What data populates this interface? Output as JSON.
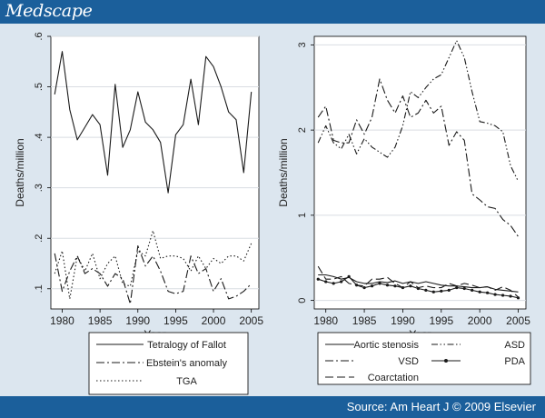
{
  "header": {
    "brand": "Medscape"
  },
  "footer": {
    "source": "Source: Am Heart J © 2009 Elsevier"
  },
  "colors": {
    "banner": "#1b5f9b",
    "panel": "#dce6ef",
    "plot_bg": "#ffffff",
    "line": "#1a1a1a"
  },
  "chart_data": [
    {
      "type": "line",
      "title": "",
      "xlabel": "Year",
      "ylabel": "Deaths/million",
      "xlim": [
        1978.5,
        2006
      ],
      "ylim": [
        0.06,
        0.6
      ],
      "xticks": [
        1980,
        1985,
        1990,
        1995,
        2000,
        2005
      ],
      "xtick_labels": [
        "1980",
        "1985",
        "1990",
        "1995",
        "2000",
        "2005"
      ],
      "yticks": [
        0.1,
        0.2,
        0.3,
        0.4,
        0.5,
        0.6
      ],
      "ytick_labels": [
        ".1",
        ".2",
        ".3",
        ".4",
        ".5",
        ".6"
      ],
      "grid": true,
      "legend_position": "bottom",
      "x": [
        1979,
        1980,
        1981,
        1982,
        1983,
        1984,
        1985,
        1986,
        1987,
        1988,
        1989,
        1990,
        1991,
        1992,
        1993,
        1994,
        1995,
        1996,
        1997,
        1998,
        1999,
        2000,
        2001,
        2002,
        2003,
        2004,
        2005
      ],
      "series": [
        {
          "name": "Tetralogy of Fallot",
          "style": "solid",
          "values": [
            0.485,
            0.57,
            0.455,
            0.395,
            0.42,
            0.445,
            0.425,
            0.325,
            0.505,
            0.38,
            0.415,
            0.49,
            0.43,
            0.415,
            0.39,
            0.29,
            0.405,
            0.425,
            0.515,
            0.425,
            0.56,
            0.54,
            0.5,
            0.45,
            0.435,
            0.33,
            0.49
          ]
        },
        {
          "name": "Ebstein's anomaly",
          "style": "dashdot",
          "values": [
            0.17,
            0.095,
            0.135,
            0.165,
            0.13,
            0.14,
            0.13,
            0.105,
            0.13,
            0.12,
            0.07,
            0.185,
            0.145,
            0.165,
            0.135,
            0.095,
            0.09,
            0.095,
            0.165,
            0.13,
            0.14,
            0.095,
            0.12,
            0.08,
            0.085,
            0.095,
            0.11
          ]
        },
        {
          "name": "TGA",
          "style": "dotted",
          "values": [
            0.13,
            0.175,
            0.08,
            0.165,
            0.135,
            0.17,
            0.12,
            0.15,
            0.165,
            0.11,
            0.105,
            0.175,
            0.165,
            0.215,
            0.16,
            0.165,
            0.165,
            0.16,
            0.135,
            0.165,
            0.14,
            0.16,
            0.15,
            0.165,
            0.165,
            0.155,
            0.19
          ]
        }
      ]
    },
    {
      "type": "line",
      "title": "",
      "xlabel": "Year",
      "ylabel": "Deaths/million",
      "xlim": [
        1978.5,
        2006
      ],
      "ylim": [
        -0.1,
        3.1
      ],
      "xticks": [
        1980,
        1985,
        1990,
        1995,
        2000,
        2005
      ],
      "xtick_labels": [
        "1980",
        "1985",
        "1990",
        "1995",
        "2000",
        "2005"
      ],
      "yticks": [
        0,
        1,
        2,
        3
      ],
      "ytick_labels": [
        "0",
        "1",
        "2",
        "3"
      ],
      "grid": true,
      "legend_position": "bottom",
      "x": [
        1979,
        1980,
        1981,
        1982,
        1983,
        1984,
        1985,
        1986,
        1987,
        1988,
        1989,
        1990,
        1991,
        1992,
        1993,
        1994,
        1995,
        1996,
        1997,
        1998,
        1999,
        2000,
        2001,
        2002,
        2003,
        2004,
        2005
      ],
      "series": [
        {
          "name": "Aortic stenosis",
          "style": "solid",
          "values": [
            0.3,
            0.3,
            0.28,
            0.25,
            0.27,
            0.22,
            0.2,
            0.2,
            0.22,
            0.21,
            0.23,
            0.2,
            0.22,
            0.2,
            0.22,
            0.2,
            0.18,
            0.17,
            0.17,
            0.16,
            0.15,
            0.15,
            0.16,
            0.13,
            0.12,
            0.11,
            0.1
          ]
        },
        {
          "name": "ASD",
          "style": "dashdotdot",
          "values": [
            1.85,
            2.05,
            1.85,
            1.78,
            1.95,
            1.72,
            1.9,
            1.8,
            1.74,
            1.68,
            1.8,
            2.05,
            2.45,
            2.38,
            2.5,
            2.6,
            2.65,
            2.85,
            3.05,
            2.85,
            2.45,
            2.1,
            2.08,
            2.05,
            1.98,
            1.58,
            1.4
          ]
        },
        {
          "name": "VSD",
          "style": "dashdot",
          "values": [
            2.15,
            2.28,
            1.88,
            1.85,
            1.85,
            2.12,
            1.95,
            2.15,
            2.6,
            2.35,
            2.2,
            2.4,
            2.15,
            2.2,
            2.35,
            2.2,
            2.28,
            1.82,
            1.98,
            1.88,
            1.25,
            1.18,
            1.1,
            1.08,
            0.95,
            0.88,
            0.75
          ]
        },
        {
          "name": "PDA",
          "style": "solid-marker",
          "values": [
            0.25,
            0.22,
            0.2,
            0.22,
            0.28,
            0.18,
            0.15,
            0.17,
            0.2,
            0.18,
            0.17,
            0.15,
            0.17,
            0.14,
            0.12,
            0.1,
            0.11,
            0.12,
            0.15,
            0.14,
            0.12,
            0.1,
            0.09,
            0.07,
            0.06,
            0.05,
            0.03
          ]
        },
        {
          "name": "Coarctation",
          "style": "dashed",
          "values": [
            0.4,
            0.25,
            0.25,
            0.28,
            0.2,
            0.18,
            0.17,
            0.25,
            0.25,
            0.27,
            0.2,
            0.15,
            0.22,
            0.15,
            0.17,
            0.15,
            0.15,
            0.2,
            0.17,
            0.2,
            0.18,
            0.15,
            0.16,
            0.12,
            0.16,
            0.12,
            0.04
          ]
        }
      ]
    }
  ]
}
